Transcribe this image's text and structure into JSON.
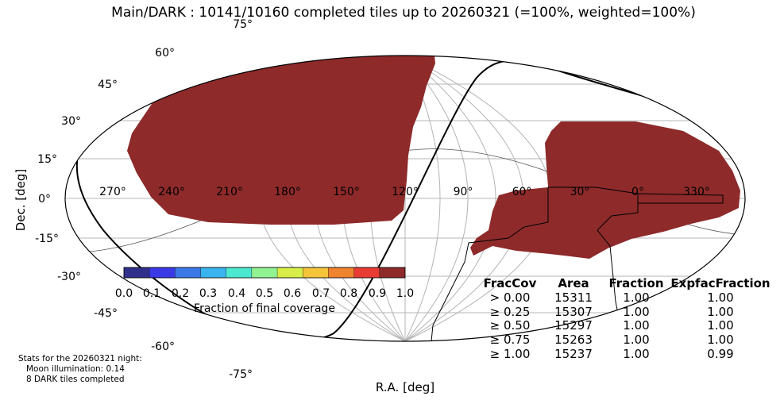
{
  "title": "Main/DARK : 10141/10160 completed tiles up to 20260321 (=100%, weighted=100%)",
  "xlabel": "R.A. [deg]",
  "ylabel": "Dec. [deg]",
  "ra_ticks": [
    "270°",
    "240°",
    "210°",
    "180°",
    "150°",
    "120°",
    "90°",
    "60°",
    "30°",
    "0°",
    "330°"
  ],
  "dec_ticks": [
    "75°",
    "60°",
    "45°",
    "30°",
    "15°",
    "0°",
    "-15°",
    "-30°",
    "-45°",
    "-60°",
    "-75°"
  ],
  "colorbar": {
    "label": "Fraction of final coverage",
    "ticks": [
      "0.0",
      "0.1",
      "0.2",
      "0.3",
      "0.4",
      "0.5",
      "0.6",
      "0.7",
      "0.8",
      "0.9",
      "1.0"
    ],
    "colors": [
      "#30308c",
      "#3a3ae6",
      "#3b78e8",
      "#3ab4ee",
      "#4de8d0",
      "#90f290",
      "#d8ee48",
      "#f4c43a",
      "#f0842e",
      "#e83c34",
      "#8e2a2a"
    ]
  },
  "stats": {
    "headers": [
      "FracCov",
      "Area",
      "Fraction",
      "ExpfacFraction"
    ],
    "rows": [
      {
        "label": "> 0.00",
        "area": "15311",
        "fraction": "1.00",
        "expfac": "1.00",
        "color": "#000000"
      },
      {
        "label": "≥ 0.25",
        "area": "15307",
        "fraction": "1.00",
        "expfac": "1.00",
        "color": "#1f55e8"
      },
      {
        "label": "≥ 0.50",
        "area": "15297",
        "fraction": "1.00",
        "expfac": "1.00",
        "color": "#7af07a"
      },
      {
        "label": "≥ 0.75",
        "area": "15263",
        "fraction": "1.00",
        "expfac": "1.00",
        "color": "#f07a12"
      },
      {
        "label": "≥ 1.00",
        "area": "15237",
        "fraction": "1.00",
        "expfac": "0.99",
        "color": "#7a1010"
      }
    ]
  },
  "night_stats": {
    "line1": "Stats for the 20260321 night:",
    "line2": "Moon illumination: 0.14",
    "line3": "8 DARK tiles completed"
  },
  "chart_data": {
    "type": "heatmap",
    "projection": "mollweide",
    "coverage_color": "#8e2a2a",
    "completed_fraction": 1.0,
    "completed_tiles": 10141,
    "total_tiles": 10160
  }
}
